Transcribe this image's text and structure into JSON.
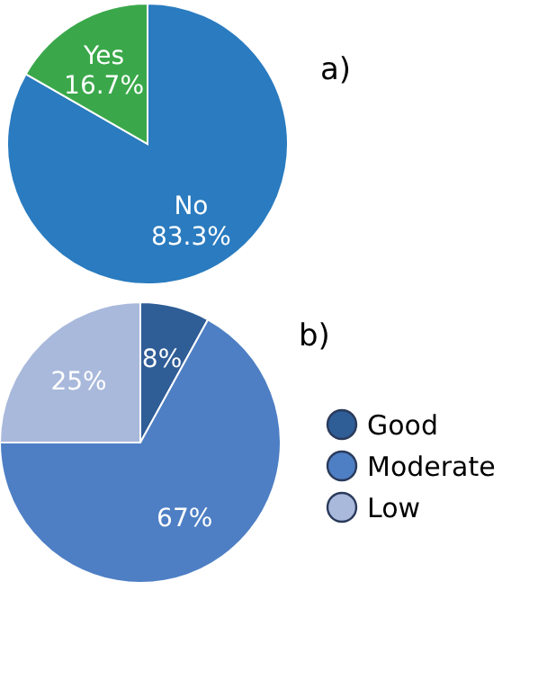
{
  "chart_data": [
    {
      "type": "pie",
      "title": "a)",
      "categories": [
        "No",
        "Yes"
      ],
      "values": [
        83.3,
        16.7
      ],
      "value_labels": [
        "83.3%",
        "16.7%"
      ],
      "colors": [
        "#2a7bbf",
        "#3aa84a"
      ],
      "legend": false
    },
    {
      "type": "pie",
      "title": "b)",
      "categories": [
        "Good",
        "Moderate",
        "Low"
      ],
      "values": [
        8,
        67,
        25
      ],
      "value_labels": [
        "8%",
        "67%",
        "25%"
      ],
      "colors": [
        "#2f5d96",
        "#4e7fc4",
        "#a9b9dc"
      ],
      "legend": "right"
    }
  ]
}
